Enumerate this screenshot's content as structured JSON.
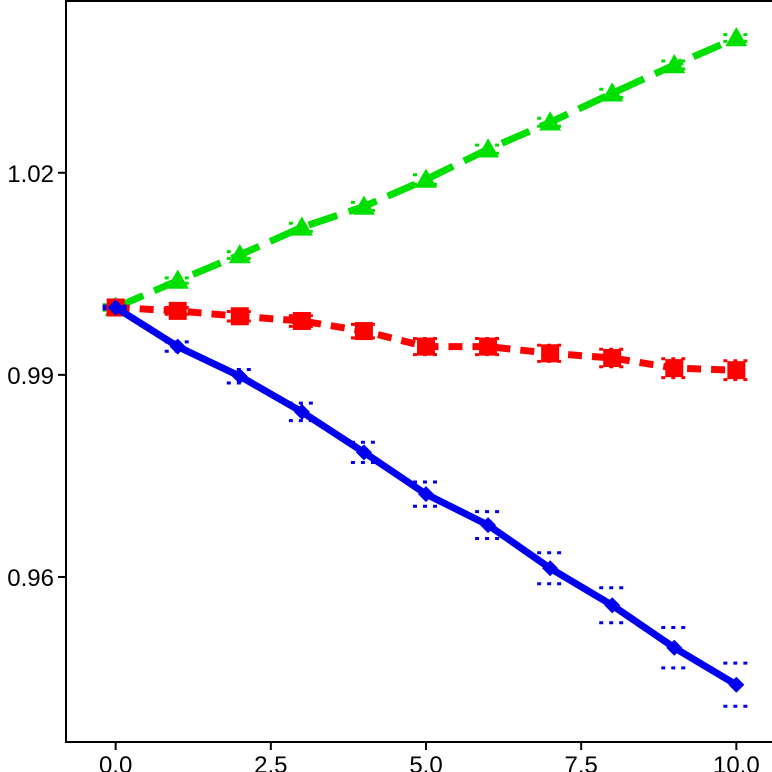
{
  "chart_data": {
    "type": "line",
    "title": "",
    "xlabel": "",
    "ylabel": "",
    "xlim": [
      -0.8,
      10.8
    ],
    "ylim": [
      0.9355,
      1.0455
    ],
    "x_ticks": [
      0.0,
      2.5,
      5.0,
      7.5,
      10.0
    ],
    "x_tick_labels": [
      "0.0",
      "2.5",
      "5.0",
      "7.5",
      "10.0"
    ],
    "y_ticks": [
      0.96,
      0.99,
      1.02
    ],
    "y_tick_labels": [
      "0.96",
      "0.99",
      "1.02"
    ],
    "grid": false,
    "legend": "none",
    "series": [
      {
        "color": "#00e000",
        "line_style": "long-dash",
        "marker": "triangle",
        "x": [
          0,
          1,
          2,
          3,
          4,
          5,
          6,
          7,
          8,
          9,
          10
        ],
        "y": [
          1.0,
          1.004,
          1.0078,
          1.0119,
          1.015,
          1.019,
          1.0235,
          1.0275,
          1.0318,
          1.036,
          1.04
        ],
        "y_low": [
          0.9996,
          1.0036,
          1.0073,
          1.0113,
          1.0144,
          1.0183,
          1.0229,
          1.0269,
          1.0312,
          1.0354,
          1.0395
        ],
        "y_high": [
          1.0004,
          1.0044,
          1.0083,
          1.0125,
          1.0156,
          1.0197,
          1.0241,
          1.0281,
          1.0324,
          1.0366,
          1.0405
        ]
      },
      {
        "color": "#ff0000",
        "line_style": "short-dash",
        "marker": "square",
        "x": [
          0,
          1,
          2,
          3,
          4,
          5,
          6,
          7,
          8,
          9,
          10
        ],
        "y": [
          1.0,
          0.9995,
          0.9987,
          0.998,
          0.9965,
          0.9942,
          0.9942,
          0.9932,
          0.9925,
          0.991,
          0.9907
        ],
        "y_low": [
          0.9998,
          0.999,
          0.998,
          0.9972,
          0.9955,
          0.993,
          0.993,
          0.992,
          0.9912,
          0.9896,
          0.9893
        ],
        "y_high": [
          1.0002,
          1.0,
          0.9994,
          0.9988,
          0.9975,
          0.9954,
          0.9954,
          0.9944,
          0.9938,
          0.9924,
          0.9921
        ]
      },
      {
        "color": "#0000ee",
        "line_style": "solid",
        "marker": "diamond",
        "x": [
          0,
          1,
          2,
          3,
          4,
          5,
          6,
          7,
          8,
          9,
          10
        ],
        "y": [
          1.0,
          0.9942,
          0.9898,
          0.9845,
          0.9785,
          0.9723,
          0.9677,
          0.9613,
          0.9558,
          0.9495,
          0.944
        ],
        "y_low": [
          0.9998,
          0.9935,
          0.9888,
          0.9832,
          0.977,
          0.9705,
          0.9657,
          0.959,
          0.9532,
          0.9465,
          0.9408
        ],
        "y_high": [
          1.0002,
          0.9949,
          0.9908,
          0.9858,
          0.98,
          0.9741,
          0.9697,
          0.9636,
          0.9584,
          0.9525,
          0.9472
        ]
      }
    ]
  }
}
